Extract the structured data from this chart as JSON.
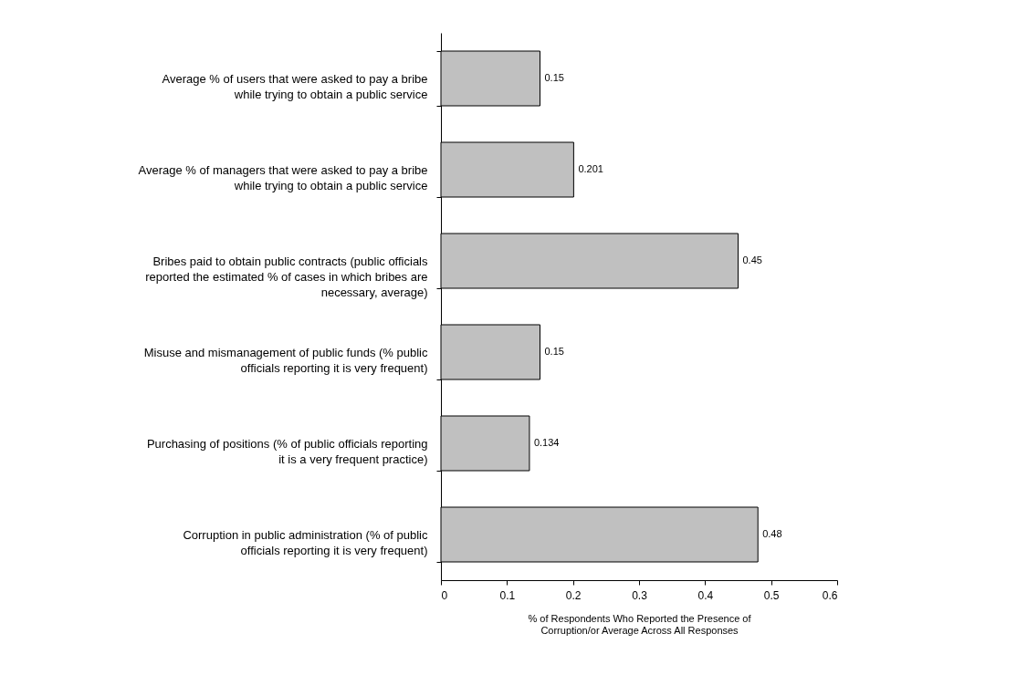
{
  "chart_data": {
    "type": "bar",
    "orientation": "horizontal",
    "categories": [
      "Average % of users that were asked to pay a bribe\nwhile trying to obtain a public service",
      "Average % of managers that were asked to pay a bribe\nwhile trying to obtain a public service",
      "Bribes paid to obtain public contracts (public officials\nreported the estimated % of cases in which bribes are\nnecessary, average)",
      "Misuse and mismanagement of public funds (% public\nofficials reporting it is very frequent)",
      "Purchasing of positions (% of public officials reporting\nit is a very frequent practice)",
      "Corruption in public administration (% of public\nofficials reporting it is very frequent)"
    ],
    "values": [
      0.15,
      0.201,
      0.45,
      0.15,
      0.134,
      0.48
    ],
    "color": "#c0c0c0",
    "xlim": [
      0,
      0.6
    ],
    "xticks": [
      0,
      0.1,
      0.2,
      0.3,
      0.4,
      0.5,
      0.6
    ],
    "xlabel": "% of Respondents Who Reported the Presence of\nCorruption/or Average Across All Responses",
    "data_labels": true,
    "grid": false
  }
}
